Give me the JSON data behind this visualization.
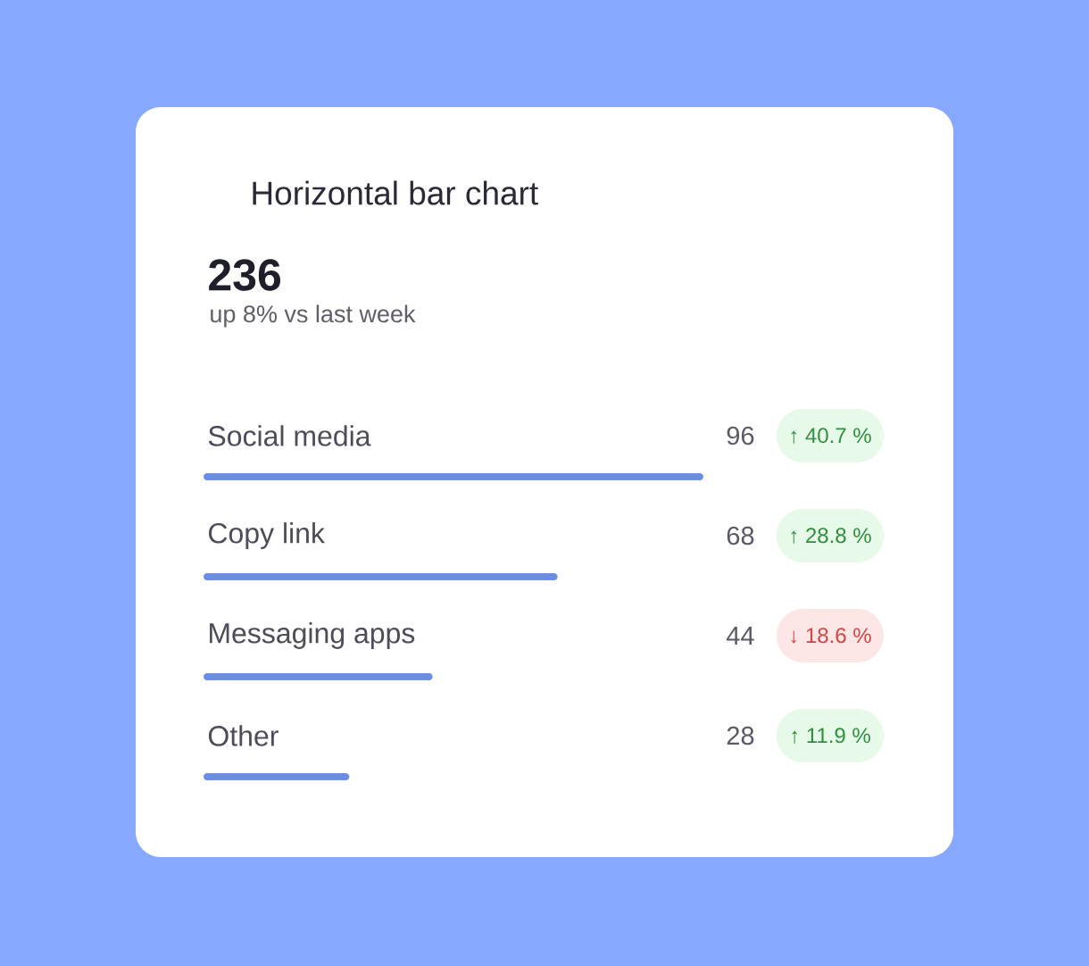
{
  "chart_data": {
    "type": "bar",
    "orientation": "horizontal",
    "title": "Horizontal bar chart",
    "subtitle": "236",
    "categories": [
      "Social media",
      "Copy link",
      "Messaging apps",
      "Other"
    ],
    "values": [
      96,
      68,
      44,
      28
    ],
    "color": "#6b8de3",
    "data_labels": true,
    "tick_labels": "y",
    "annotations": [
      "up 8% vs last week",
      "↑ 40.7 %",
      "↑ 28.8 %",
      "↓ 18.6 %",
      "↑ 11.9 %"
    ]
  }
}
